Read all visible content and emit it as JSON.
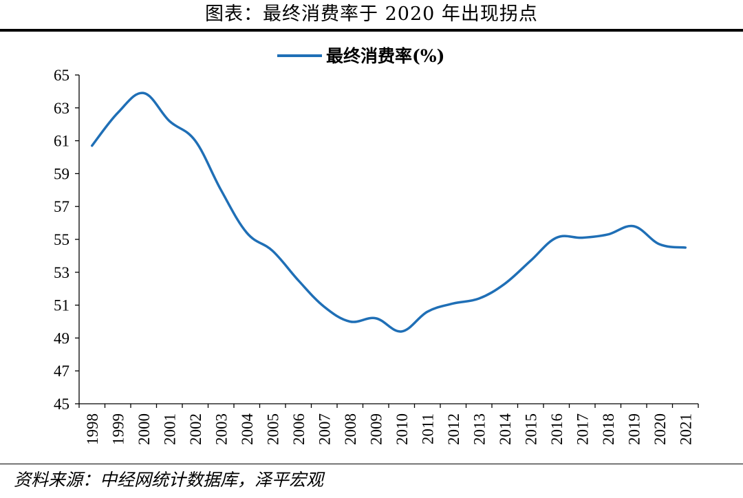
{
  "title": "图表：最终消费率于 2020 年出现拐点",
  "source": "资料来源：中经网统计数据库，泽平宏观",
  "colors": {
    "line": "#1f6fb6",
    "axis": "#000000"
  },
  "chart_data": {
    "type": "line",
    "x": [
      "1998",
      "1999",
      "2000",
      "2001",
      "2002",
      "2003",
      "2004",
      "2005",
      "2006",
      "2007",
      "2008",
      "2009",
      "2010",
      "2011",
      "2012",
      "2013",
      "2014",
      "2015",
      "2016",
      "2017",
      "2018",
      "2019",
      "2020",
      "2021"
    ],
    "series": [
      {
        "name": "最终消费率(%)",
        "values": [
          60.7,
          62.7,
          63.9,
          62.2,
          61.0,
          58.0,
          55.4,
          54.3,
          52.5,
          50.9,
          50.0,
          50.2,
          49.4,
          50.6,
          51.1,
          51.4,
          52.3,
          53.7,
          55.1,
          55.1,
          55.3,
          55.8,
          54.7,
          54.5
        ]
      }
    ],
    "yticks": [
      "45",
      "47",
      "49",
      "51",
      "53",
      "55",
      "57",
      "59",
      "61",
      "63",
      "65"
    ],
    "ylim": [
      45,
      65
    ],
    "legend": "top-center",
    "grid": false
  }
}
